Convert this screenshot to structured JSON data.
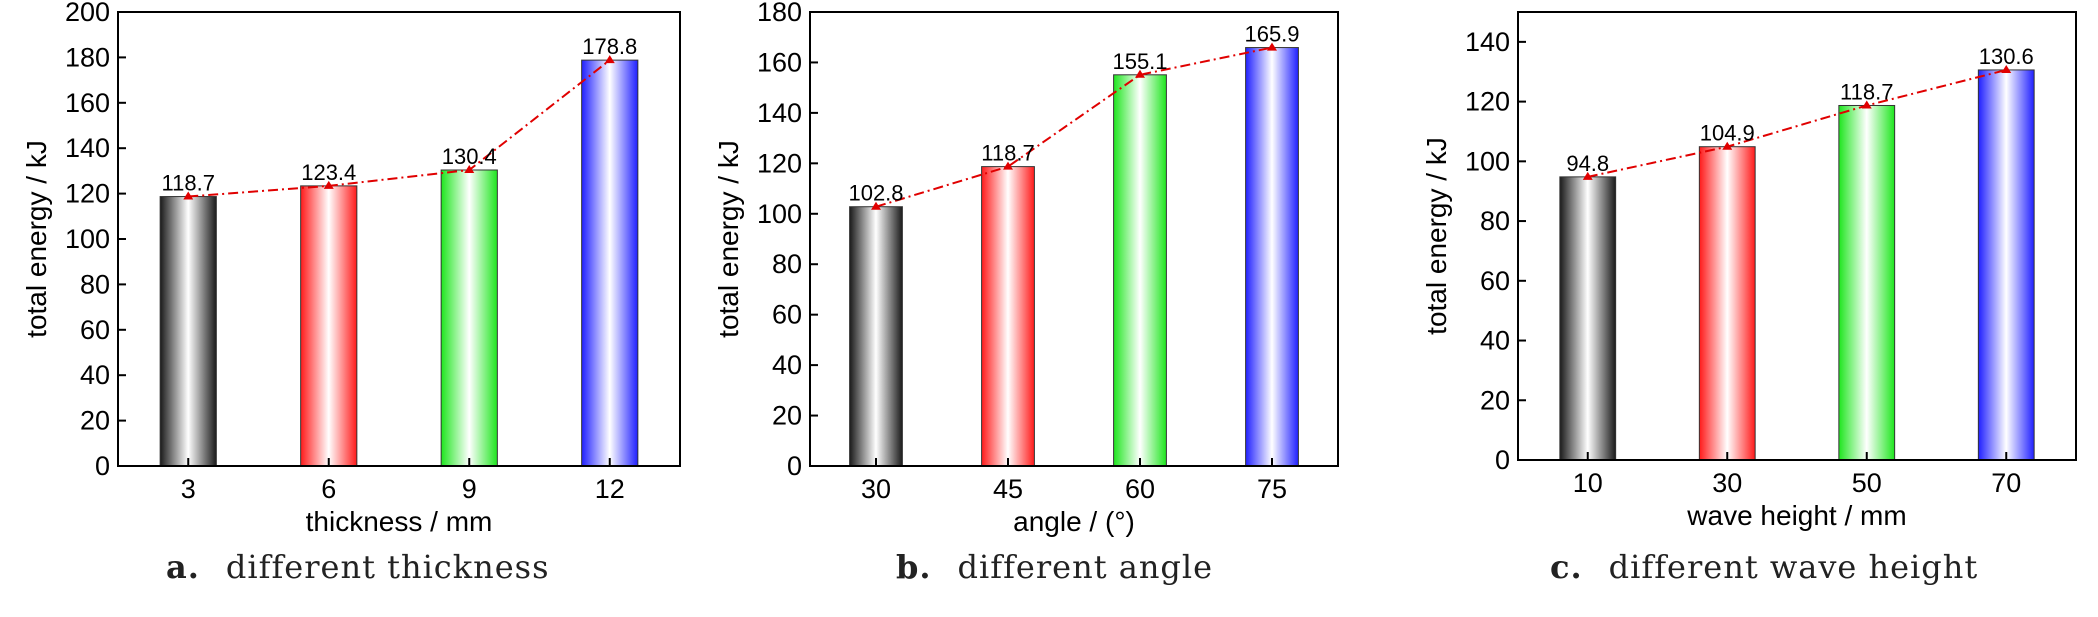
{
  "panels": [
    {
      "caption_label": "a.",
      "caption_text": "different thickness",
      "chart_data": {
        "type": "bar",
        "categories": [
          "3",
          "6",
          "9",
          "12"
        ],
        "values": [
          118.7,
          123.4,
          130.4,
          178.8
        ],
        "data_labels": [
          "118.7",
          "123.4",
          "130.4",
          "178.8"
        ],
        "xlabel": "thickness / mm",
        "ylabel": "total energy / kJ",
        "ylim": [
          0,
          200
        ],
        "yticks": [
          "0",
          "20",
          "40",
          "60",
          "80",
          "100",
          "120",
          "140",
          "160",
          "180",
          "200"
        ],
        "grid": false,
        "overlay_line": "red dash-dot line with markers through bar tops"
      }
    },
    {
      "caption_label": "b.",
      "caption_text": "different angle",
      "chart_data": {
        "type": "bar",
        "categories": [
          "30",
          "45",
          "60",
          "75"
        ],
        "values": [
          102.8,
          118.7,
          155.1,
          165.9
        ],
        "data_labels": [
          "102.8",
          "118.7",
          "155.1",
          "165.9"
        ],
        "xlabel": "angle / (°)",
        "ylabel": "total energy / kJ",
        "ylim": [
          0,
          180
        ],
        "yticks": [
          "0",
          "20",
          "40",
          "60",
          "80",
          "100",
          "120",
          "140",
          "160",
          "180"
        ],
        "grid": false,
        "overlay_line": "red dash-dot line with markers through bar tops"
      }
    },
    {
      "caption_label": "c.",
      "caption_text": "different wave height",
      "chart_data": {
        "type": "bar",
        "categories": [
          "10",
          "30",
          "50",
          "70"
        ],
        "values": [
          94.8,
          104.9,
          118.7,
          130.6
        ],
        "data_labels": [
          "94.8",
          "104.9",
          "118.7",
          "130.6"
        ],
        "xlabel": "wave height / mm",
        "ylabel": "total energy / kJ",
        "ylim": [
          0,
          150
        ],
        "yticks": [
          "0",
          "20",
          "40",
          "60",
          "80",
          "100",
          "120",
          "140"
        ],
        "grid": false,
        "overlay_line": "red dash-dot line with markers through bar tops"
      }
    }
  ],
  "colors": {
    "bar_gradients": [
      [
        "#1a1a1a",
        "#ffffff",
        "#1a1a1a"
      ],
      [
        "#ff1a1a",
        "#ffffff",
        "#ff1a1a"
      ],
      [
        "#1ee61e",
        "#ffffff",
        "#1ee61e"
      ],
      [
        "#2020ff",
        "#ffffff",
        "#2020ff"
      ]
    ],
    "line": "#e00000",
    "axis": "#000000"
  }
}
